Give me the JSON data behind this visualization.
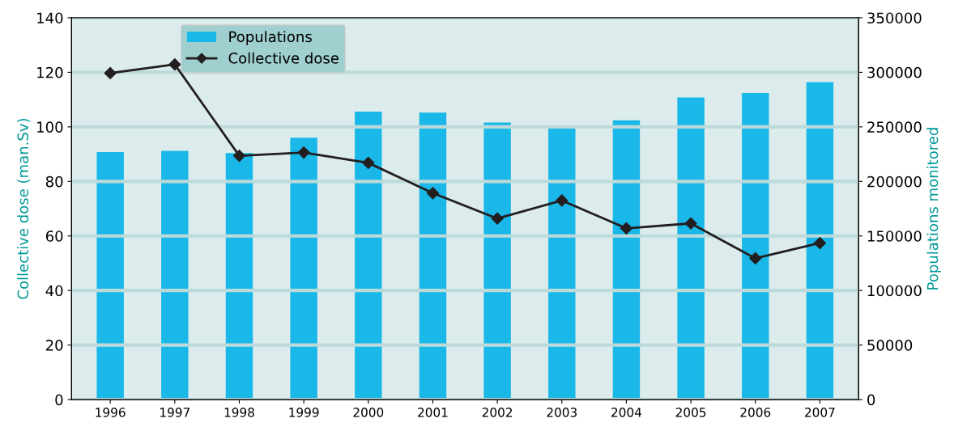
{
  "chart_data": {
    "type": "bar",
    "categories": [
      "1996",
      "1997",
      "1998",
      "1999",
      "2000",
      "2001",
      "2002",
      "2003",
      "2004",
      "2005",
      "2006",
      "2007"
    ],
    "series": [
      {
        "name": "Populations",
        "axis": "y2",
        "color": "#1ab8e8",
        "values": [
          227000,
          228000,
          226000,
          240000,
          264000,
          263000,
          254000,
          250000,
          256000,
          277000,
          281000,
          291000
        ]
      },
      {
        "name": "Collective dose",
        "type": "line",
        "axis": "y",
        "color": "#231f20",
        "marker": "diamond",
        "values": [
          119.7,
          122.9,
          89.4,
          90.6,
          86.8,
          75.7,
          66.4,
          73.0,
          62.8,
          64.6,
          51.8,
          57.4
        ]
      }
    ],
    "ylabel": "Collective dose (man.Sv)",
    "y2label": "Populations monitored",
    "ylim": [
      0,
      140
    ],
    "yticks": [
      0,
      20,
      40,
      60,
      80,
      100,
      120,
      140
    ],
    "y2lim": [
      0,
      350000
    ],
    "y2ticks": [
      0,
      50000,
      100000,
      150000,
      200000,
      250000,
      300000,
      350000
    ],
    "grid": "y",
    "legend": "top left"
  }
}
